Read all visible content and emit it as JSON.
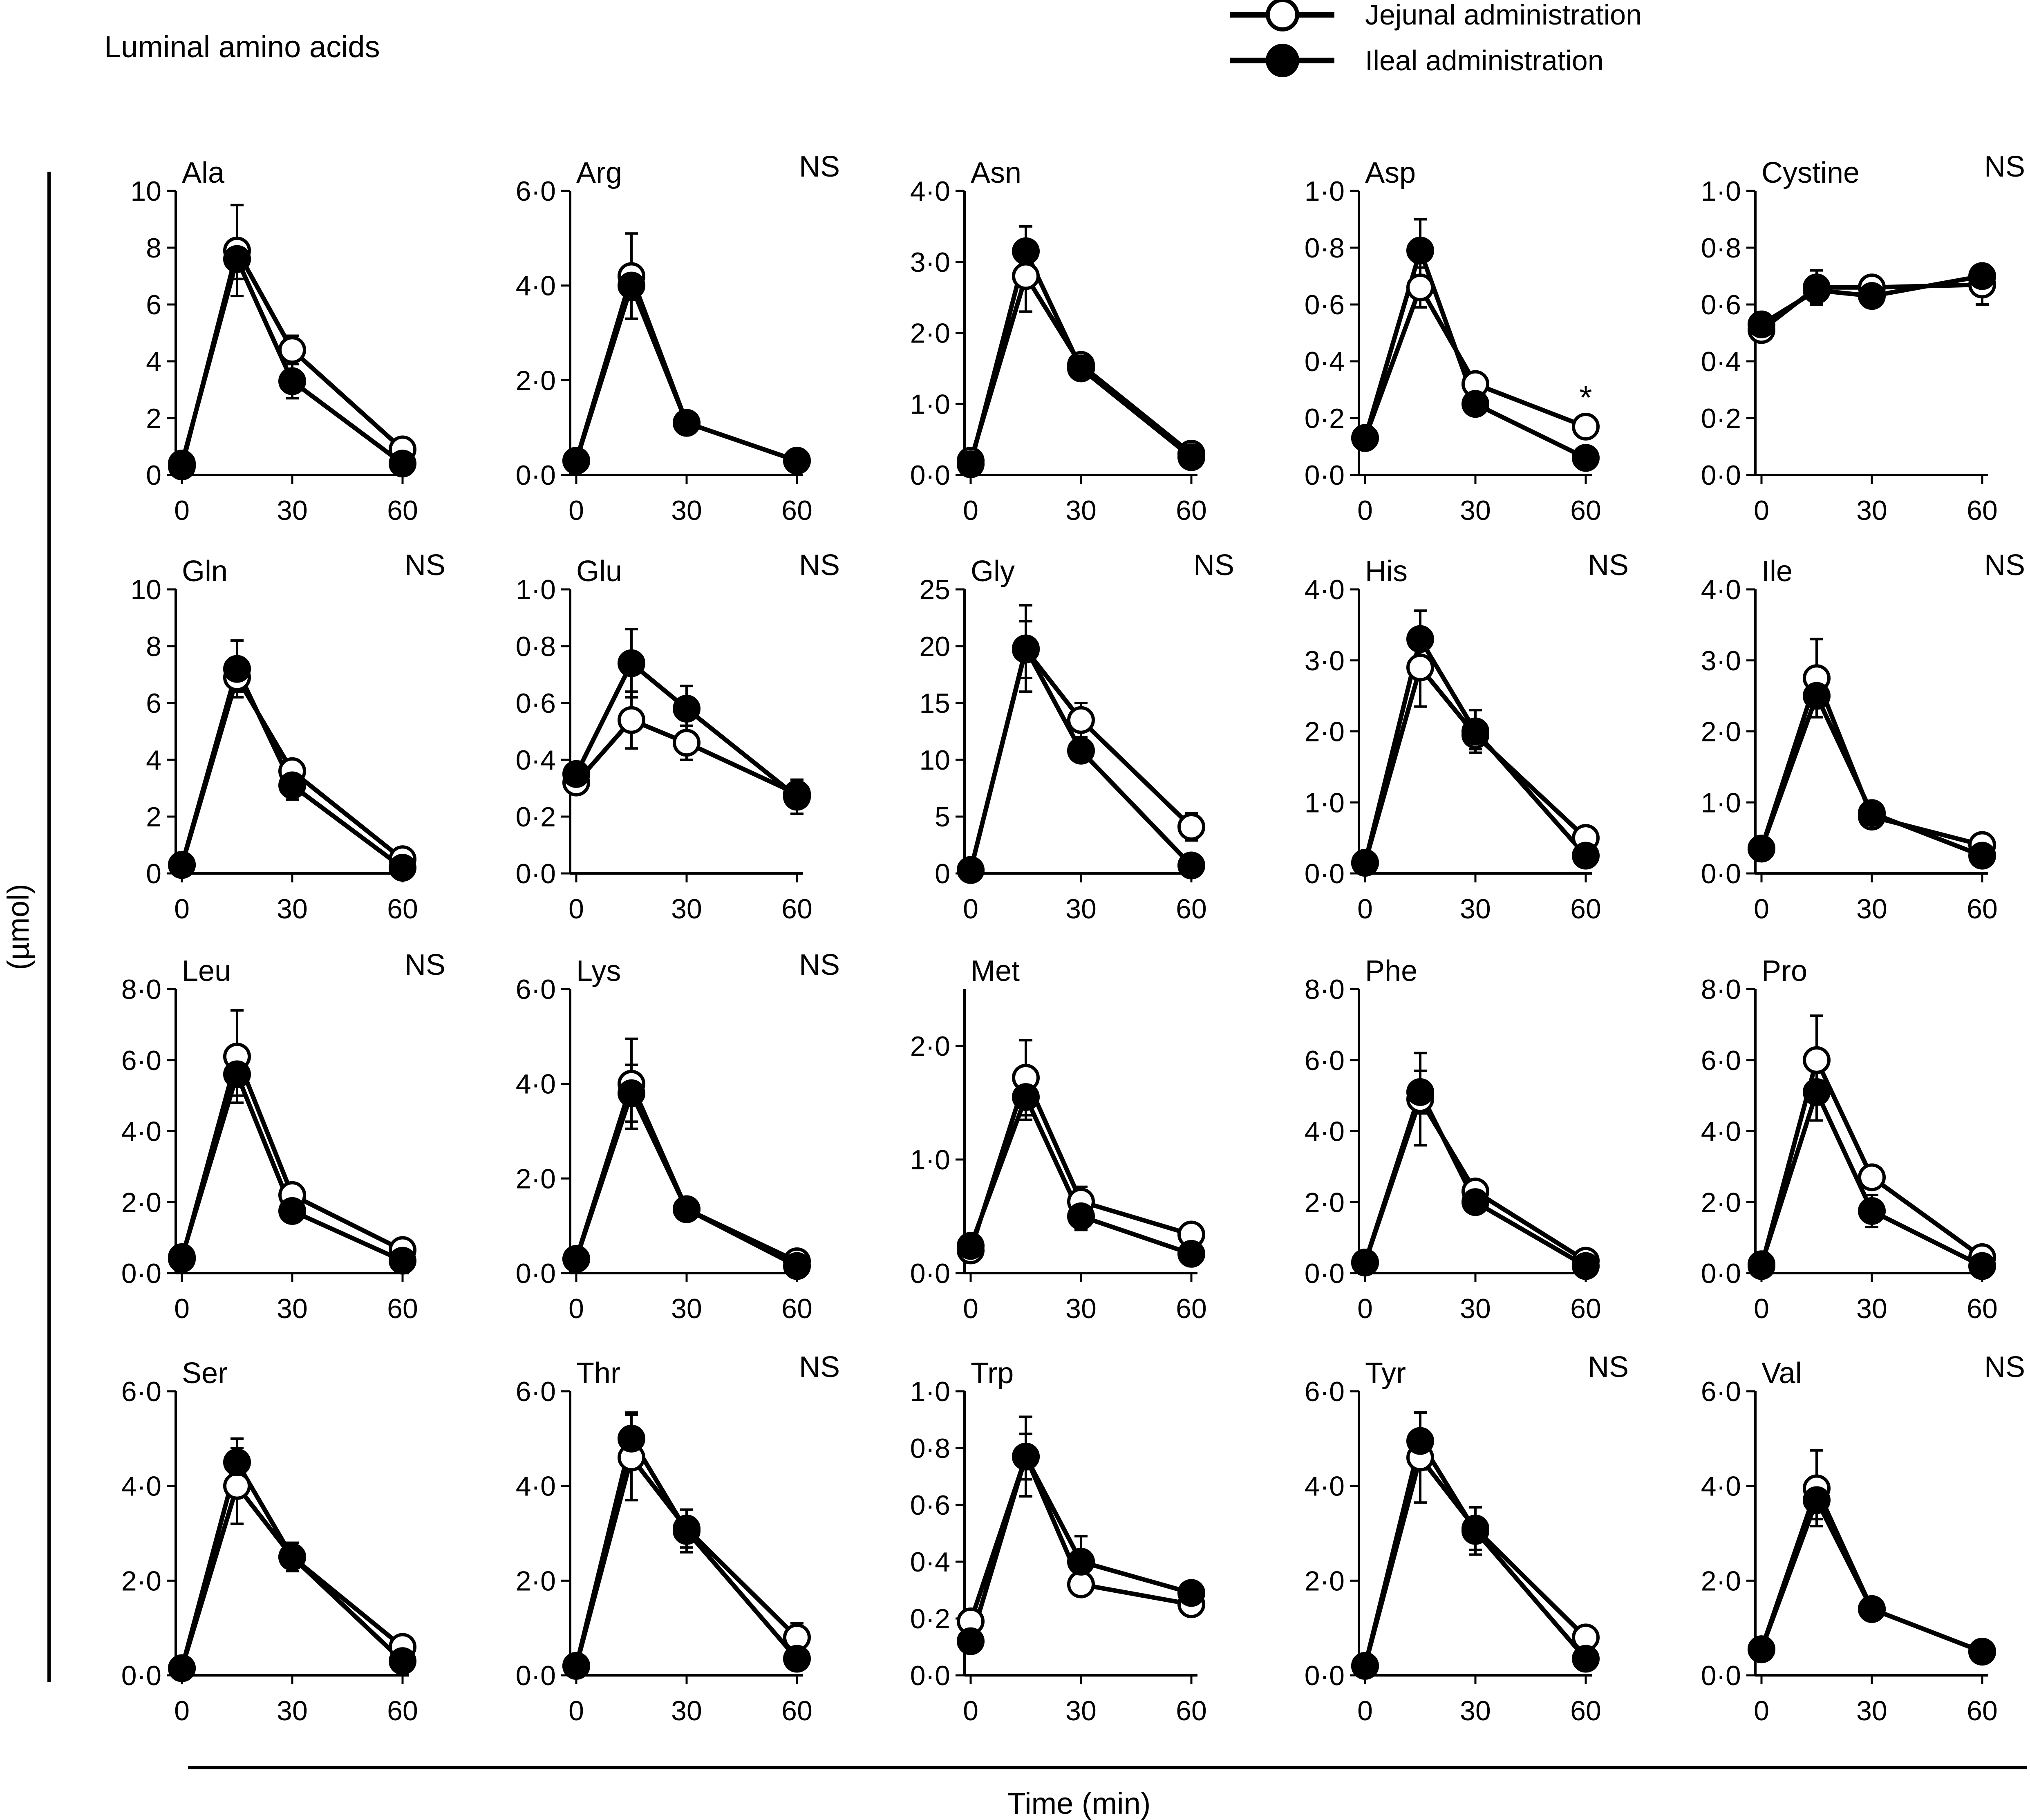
{
  "figure": {
    "title": "Luminal amino acids",
    "y_label": "(µmol)",
    "x_label": "Time (min)",
    "legend": [
      {
        "label": "Jejunal administration",
        "marker": "open-circle"
      },
      {
        "label": "Ileal administration",
        "marker": "filled-circle"
      }
    ],
    "colors": {
      "line": "#000000",
      "open_fill": "#ffffff",
      "filled_fill": "#000000"
    }
  },
  "chart_data": [
    {
      "type": "line",
      "title": "Ala",
      "sig": "",
      "x": [
        0,
        15,
        30,
        60
      ],
      "ylim": [
        0,
        10
      ],
      "yticks": [
        "0",
        "2",
        "4",
        "6",
        "8",
        "10"
      ],
      "xticks": [
        "0",
        "30",
        "60"
      ],
      "series": [
        {
          "name": "Jejunal administration",
          "values": [
            0.3,
            7.9,
            4.4,
            0.9
          ],
          "errors": [
            0.1,
            1.6,
            0.5,
            0.2
          ]
        },
        {
          "name": "Ileal administration",
          "values": [
            0.4,
            7.6,
            3.3,
            0.4
          ],
          "errors": [
            0.1,
            0.7,
            0.6,
            0.1
          ]
        }
      ]
    },
    {
      "type": "line",
      "title": "Arg",
      "sig": "NS",
      "x": [
        0,
        15,
        30,
        60
      ],
      "ylim": [
        0,
        6
      ],
      "yticks": [
        "0·0",
        "2·0",
        "4·0",
        "6·0"
      ],
      "xticks": [
        "0",
        "30",
        "60"
      ],
      "series": [
        {
          "name": "Jejunal administration",
          "values": [
            0.3,
            4.2,
            1.1,
            0.3
          ],
          "errors": [
            0.05,
            0.9,
            0.1,
            0.05
          ]
        },
        {
          "name": "Ileal administration",
          "values": [
            0.3,
            4.0,
            1.1,
            0.3
          ],
          "errors": [
            0.05,
            0.3,
            0.1,
            0.05
          ]
        }
      ]
    },
    {
      "type": "line",
      "title": "Asn",
      "sig": "",
      "x": [
        0,
        15,
        30,
        60
      ],
      "ylim": [
        0,
        4
      ],
      "yticks": [
        "0·0",
        "1·0",
        "2·0",
        "3·0",
        "4·0"
      ],
      "xticks": [
        "0",
        "30",
        "60"
      ],
      "series": [
        {
          "name": "Jejunal administration",
          "values": [
            0.2,
            2.8,
            1.55,
            0.3
          ],
          "errors": [
            0.05,
            0.5,
            0.1,
            0.05
          ]
        },
        {
          "name": "Ileal administration",
          "values": [
            0.15,
            3.15,
            1.5,
            0.25
          ],
          "errors": [
            0.05,
            0.35,
            0.1,
            0.05
          ]
        }
      ]
    },
    {
      "type": "line",
      "title": "Asp",
      "sig": "",
      "annotation": "*",
      "x": [
        0,
        15,
        30,
        60
      ],
      "ylim": [
        0,
        1
      ],
      "yticks": [
        "0·0",
        "0·2",
        "0·4",
        "0·6",
        "0·8",
        "1·0"
      ],
      "xticks": [
        "0",
        "30",
        "60"
      ],
      "series": [
        {
          "name": "Jejunal administration",
          "values": [
            0.13,
            0.66,
            0.32,
            0.17
          ],
          "errors": [
            0.02,
            0.07,
            0.02,
            0.02
          ]
        },
        {
          "name": "Ileal administration",
          "values": [
            0.13,
            0.79,
            0.25,
            0.06
          ],
          "errors": [
            0.02,
            0.11,
            0.02,
            0.02
          ]
        }
      ]
    },
    {
      "type": "line",
      "title": "Cystine",
      "sig": "NS",
      "x": [
        0,
        15,
        30,
        60
      ],
      "ylim": [
        0,
        1
      ],
      "yticks": [
        "0·0",
        "0·2",
        "0·4",
        "0·6",
        "0·8",
        "1·0"
      ],
      "xticks": [
        "0",
        "30",
        "60"
      ],
      "series": [
        {
          "name": "Jejunal administration",
          "values": [
            0.51,
            0.66,
            0.66,
            0.67
          ],
          "errors": [
            0.03,
            0.06,
            0.03,
            0.07
          ]
        },
        {
          "name": "Ileal administration",
          "values": [
            0.53,
            0.65,
            0.63,
            0.7
          ],
          "errors": [
            0.03,
            0.04,
            0.03,
            0.02
          ]
        }
      ]
    },
    {
      "type": "line",
      "title": "Gln",
      "sig": "NS",
      "x": [
        0,
        15,
        30,
        60
      ],
      "ylim": [
        0,
        10
      ],
      "yticks": [
        "0",
        "2",
        "4",
        "6",
        "8",
        "10"
      ],
      "xticks": [
        "0",
        "30",
        "60"
      ],
      "series": [
        {
          "name": "Jejunal administration",
          "values": [
            0.3,
            6.9,
            3.6,
            0.5
          ],
          "errors": [
            0.1,
            0.5,
            0.4,
            0.1
          ]
        },
        {
          "name": "Ileal administration",
          "values": [
            0.3,
            7.2,
            3.1,
            0.2
          ],
          "errors": [
            0.1,
            1.0,
            0.5,
            0.1
          ]
        }
      ]
    },
    {
      "type": "line",
      "title": "Glu",
      "sig": "NS",
      "x": [
        0,
        15,
        30,
        60
      ],
      "ylim": [
        0,
        1
      ],
      "yticks": [
        "0·0",
        "0·2",
        "0·4",
        "0·6",
        "0·8",
        "1·0"
      ],
      "xticks": [
        "0",
        "30",
        "60"
      ],
      "series": [
        {
          "name": "Jejunal administration",
          "values": [
            0.32,
            0.54,
            0.46,
            0.28
          ],
          "errors": [
            0.02,
            0.1,
            0.06,
            0.04
          ]
        },
        {
          "name": "Ileal administration",
          "values": [
            0.35,
            0.74,
            0.58,
            0.27
          ],
          "errors": [
            0.02,
            0.12,
            0.08,
            0.06
          ]
        }
      ]
    },
    {
      "type": "line",
      "title": "Gly",
      "sig": "NS",
      "x": [
        0,
        15,
        30,
        60
      ],
      "ylim": [
        0,
        25
      ],
      "yticks": [
        "0",
        "5",
        "10",
        "15",
        "20",
        "25"
      ],
      "xticks": [
        "0",
        "30",
        "60"
      ],
      "series": [
        {
          "name": "Jejunal administration",
          "values": [
            0.3,
            19.7,
            13.5,
            4.1
          ],
          "errors": [
            0.1,
            2.5,
            1.5,
            1.2
          ]
        },
        {
          "name": "Ileal administration",
          "values": [
            0.3,
            19.8,
            10.8,
            0.7
          ],
          "errors": [
            0.1,
            3.8,
            0.8,
            0.2
          ]
        }
      ]
    },
    {
      "type": "line",
      "title": "His",
      "sig": "NS",
      "x": [
        0,
        15,
        30,
        60
      ],
      "ylim": [
        0,
        4
      ],
      "yticks": [
        "0·0",
        "1·0",
        "2·0",
        "3·0",
        "4·0"
      ],
      "xticks": [
        "0",
        "30",
        "60"
      ],
      "series": [
        {
          "name": "Jejunal administration",
          "values": [
            0.15,
            2.9,
            1.95,
            0.5
          ],
          "errors": [
            0.05,
            0.55,
            0.2,
            0.05
          ]
        },
        {
          "name": "Ileal administration",
          "values": [
            0.15,
            3.3,
            2.0,
            0.25
          ],
          "errors": [
            0.05,
            0.4,
            0.3,
            0.05
          ]
        }
      ]
    },
    {
      "type": "line",
      "title": "Ile",
      "sig": "NS",
      "x": [
        0,
        15,
        30,
        60
      ],
      "ylim": [
        0,
        4
      ],
      "yticks": [
        "0·0",
        "1·0",
        "2·0",
        "3·0",
        "4·0"
      ],
      "xticks": [
        "0",
        "30",
        "60"
      ],
      "series": [
        {
          "name": "Jejunal administration",
          "values": [
            0.35,
            2.75,
            0.8,
            0.4
          ],
          "errors": [
            0.05,
            0.55,
            0.08,
            0.05
          ]
        },
        {
          "name": "Ileal administration",
          "values": [
            0.35,
            2.5,
            0.85,
            0.25
          ],
          "errors": [
            0.05,
            0.3,
            0.08,
            0.05
          ]
        }
      ]
    },
    {
      "type": "line",
      "title": "Leu",
      "sig": "NS",
      "x": [
        0,
        15,
        30,
        60
      ],
      "ylim": [
        0,
        8
      ],
      "yticks": [
        "0·0",
        "2·0",
        "4·0",
        "6·0",
        "8·0"
      ],
      "xticks": [
        "0",
        "30",
        "60"
      ],
      "series": [
        {
          "name": "Jejunal administration",
          "values": [
            0.4,
            6.1,
            2.2,
            0.65
          ],
          "errors": [
            0.1,
            1.3,
            0.2,
            0.1
          ]
        },
        {
          "name": "Ileal administration",
          "values": [
            0.45,
            5.6,
            1.75,
            0.35
          ],
          "errors": [
            0.1,
            0.6,
            0.3,
            0.1
          ]
        }
      ]
    },
    {
      "type": "line",
      "title": "Lys",
      "sig": "NS",
      "x": [
        0,
        15,
        30,
        60
      ],
      "ylim": [
        0,
        6
      ],
      "yticks": [
        "0·0",
        "2·0",
        "4·0",
        "6·0"
      ],
      "xticks": [
        "0",
        "30",
        "60"
      ],
      "series": [
        {
          "name": "Jejunal administration",
          "values": [
            0.3,
            4.0,
            1.35,
            0.25
          ],
          "errors": [
            0.05,
            0.95,
            0.1,
            0.05
          ]
        },
        {
          "name": "Ileal administration",
          "values": [
            0.3,
            3.8,
            1.35,
            0.15
          ],
          "errors": [
            0.05,
            0.6,
            0.2,
            0.05
          ]
        }
      ]
    },
    {
      "type": "line",
      "title": "Met",
      "sig": "",
      "x": [
        0,
        15,
        30,
        60
      ],
      "ylim": [
        0,
        2.5
      ],
      "yticks": [
        "0·0",
        "1·0",
        "2·0"
      ],
      "xticks": [
        "0",
        "30",
        "60"
      ],
      "series": [
        {
          "name": "Jejunal administration",
          "values": [
            0.2,
            1.72,
            0.63,
            0.34
          ],
          "errors": [
            0.04,
            0.33,
            0.13,
            0.04
          ]
        },
        {
          "name": "Ileal administration",
          "values": [
            0.24,
            1.55,
            0.5,
            0.17
          ],
          "errors": [
            0.04,
            0.2,
            0.12,
            0.04
          ]
        }
      ]
    },
    {
      "type": "line",
      "title": "Phe",
      "sig": "",
      "x": [
        0,
        15,
        30,
        60
      ],
      "ylim": [
        0,
        8
      ],
      "yticks": [
        "0·0",
        "2·0",
        "4·0",
        "6·0",
        "8·0"
      ],
      "xticks": [
        "0",
        "30",
        "60"
      ],
      "series": [
        {
          "name": "Jejunal administration",
          "values": [
            0.3,
            4.9,
            2.3,
            0.35
          ],
          "errors": [
            0.1,
            1.3,
            0.2,
            0.1
          ]
        },
        {
          "name": "Ileal administration",
          "values": [
            0.3,
            5.1,
            2.0,
            0.2
          ],
          "errors": [
            0.1,
            0.6,
            0.2,
            0.1
          ]
        }
      ]
    },
    {
      "type": "line",
      "title": "Pro",
      "sig": "",
      "x": [
        0,
        15,
        30,
        60
      ],
      "ylim": [
        0,
        8
      ],
      "yticks": [
        "0·0",
        "2·0",
        "4·0",
        "6·0",
        "8·0"
      ],
      "xticks": [
        "0",
        "30",
        "60"
      ],
      "series": [
        {
          "name": "Jejunal administration",
          "values": [
            0.2,
            6.0,
            2.7,
            0.45
          ],
          "errors": [
            0.05,
            1.25,
            0.2,
            0.1
          ]
        },
        {
          "name": "Ileal administration",
          "values": [
            0.25,
            5.1,
            1.75,
            0.2
          ],
          "errors": [
            0.05,
            0.8,
            0.45,
            0.05
          ]
        }
      ]
    },
    {
      "type": "line",
      "title": "Ser",
      "sig": "",
      "x": [
        0,
        15,
        30,
        60
      ],
      "ylim": [
        0,
        6
      ],
      "yticks": [
        "0·0",
        "2·0",
        "4·0",
        "6·0"
      ],
      "xticks": [
        "0",
        "30",
        "60"
      ],
      "series": [
        {
          "name": "Jejunal administration",
          "values": [
            0.15,
            4.0,
            2.5,
            0.6
          ],
          "errors": [
            0.05,
            0.8,
            0.2,
            0.05
          ]
        },
        {
          "name": "Ileal administration",
          "values": [
            0.15,
            4.5,
            2.5,
            0.3
          ],
          "errors": [
            0.05,
            0.5,
            0.3,
            0.05
          ]
        }
      ]
    },
    {
      "type": "line",
      "title": "Thr",
      "sig": "NS",
      "x": [
        0,
        15,
        30,
        60
      ],
      "ylim": [
        0,
        6
      ],
      "yticks": [
        "0·0",
        "2·0",
        "4·0",
        "6·0"
      ],
      "xticks": [
        "0",
        "30",
        "60"
      ],
      "series": [
        {
          "name": "Jejunal administration",
          "values": [
            0.2,
            4.6,
            3.1,
            0.8
          ],
          "errors": [
            0.05,
            0.9,
            0.4,
            0.3
          ]
        },
        {
          "name": "Ileal administration",
          "values": [
            0.2,
            5.0,
            3.05,
            0.35
          ],
          "errors": [
            0.05,
            0.55,
            0.45,
            0.05
          ]
        }
      ]
    },
    {
      "type": "line",
      "title": "Trp",
      "sig": "",
      "x": [
        0,
        15,
        30,
        60
      ],
      "ylim": [
        0,
        1
      ],
      "yticks": [
        "0·0",
        "0·2",
        "0·4",
        "0·6",
        "0·8",
        "1·0"
      ],
      "xticks": [
        "0",
        "30",
        "60"
      ],
      "series": [
        {
          "name": "Jejunal administration",
          "values": [
            0.19,
            0.77,
            0.32,
            0.25
          ],
          "errors": [
            0.02,
            0.08,
            0.03,
            0.03
          ]
        },
        {
          "name": "Ileal administration",
          "values": [
            0.12,
            0.77,
            0.4,
            0.29
          ],
          "errors": [
            0.02,
            0.14,
            0.09,
            0.02
          ]
        }
      ]
    },
    {
      "type": "line",
      "title": "Tyr",
      "sig": "NS",
      "x": [
        0,
        15,
        30,
        60
      ],
      "ylim": [
        0,
        6
      ],
      "yticks": [
        "0·0",
        "2·0",
        "4·0",
        "6·0"
      ],
      "xticks": [
        "0",
        "30",
        "60"
      ],
      "series": [
        {
          "name": "Jejunal administration",
          "values": [
            0.2,
            4.6,
            3.1,
            0.8
          ],
          "errors": [
            0.05,
            0.95,
            0.45,
            0.1
          ]
        },
        {
          "name": "Ileal administration",
          "values": [
            0.2,
            4.95,
            3.05,
            0.35
          ],
          "errors": [
            0.05,
            0.6,
            0.5,
            0.05
          ]
        }
      ]
    },
    {
      "type": "line",
      "title": "Val",
      "sig": "NS",
      "x": [
        0,
        15,
        30,
        60
      ],
      "ylim": [
        0,
        6
      ],
      "yticks": [
        "0·0",
        "2·0",
        "4·0",
        "6·0"
      ],
      "xticks": [
        "0",
        "30",
        "60"
      ],
      "series": [
        {
          "name": "Jejunal administration",
          "values": [
            0.55,
            3.95,
            1.4,
            0.5
          ],
          "errors": [
            0.05,
            0.8,
            0.1,
            0.05
          ]
        },
        {
          "name": "Ileal administration",
          "values": [
            0.55,
            3.7,
            1.4,
            0.5
          ],
          "errors": [
            0.05,
            0.4,
            0.15,
            0.05
          ]
        }
      ]
    }
  ]
}
